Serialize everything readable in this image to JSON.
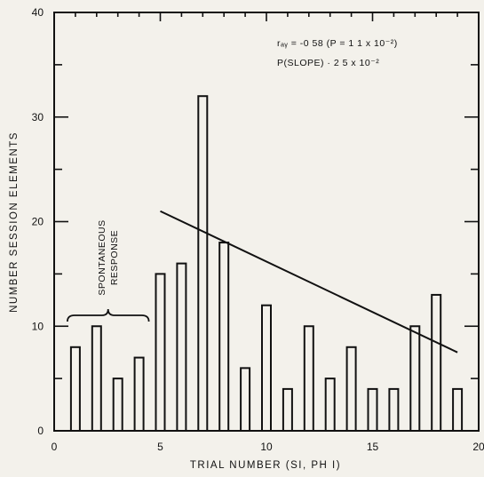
{
  "chart_data": {
    "type": "bar",
    "title": "",
    "xlabel": "TRIAL NUMBER (SI, PH I)",
    "ylabel": "NUMBER SESSION ELEMENTS",
    "xlim": [
      0,
      20
    ],
    "ylim": [
      0,
      40
    ],
    "xticks": [
      0,
      5,
      10,
      15,
      20
    ],
    "yticks": [
      0,
      10,
      20,
      30,
      40
    ],
    "grid": false,
    "x": [
      1,
      2,
      3,
      4,
      5,
      6,
      7,
      8,
      9,
      10,
      11,
      12,
      13,
      14,
      15,
      16,
      17,
      18,
      19
    ],
    "values": [
      8,
      10,
      5,
      7,
      15,
      16,
      32,
      18,
      6,
      12,
      4,
      10,
      5,
      8,
      4,
      4,
      10,
      13,
      4
    ],
    "trend_line": {
      "x": [
        5,
        19
      ],
      "y": [
        21,
        7.5
      ]
    },
    "annotations": {
      "stats_line1": "rₐᵧ = -0 58  (P = 1 1 x 10⁻²)",
      "stats_line2": "P(SLOPE) ·  2 5 x 10⁻²",
      "bracket_label_line1": "SPONTANEOUS",
      "bracket_label_line2": "RESPONSE",
      "bracket_span": [
        1,
        4
      ]
    }
  }
}
